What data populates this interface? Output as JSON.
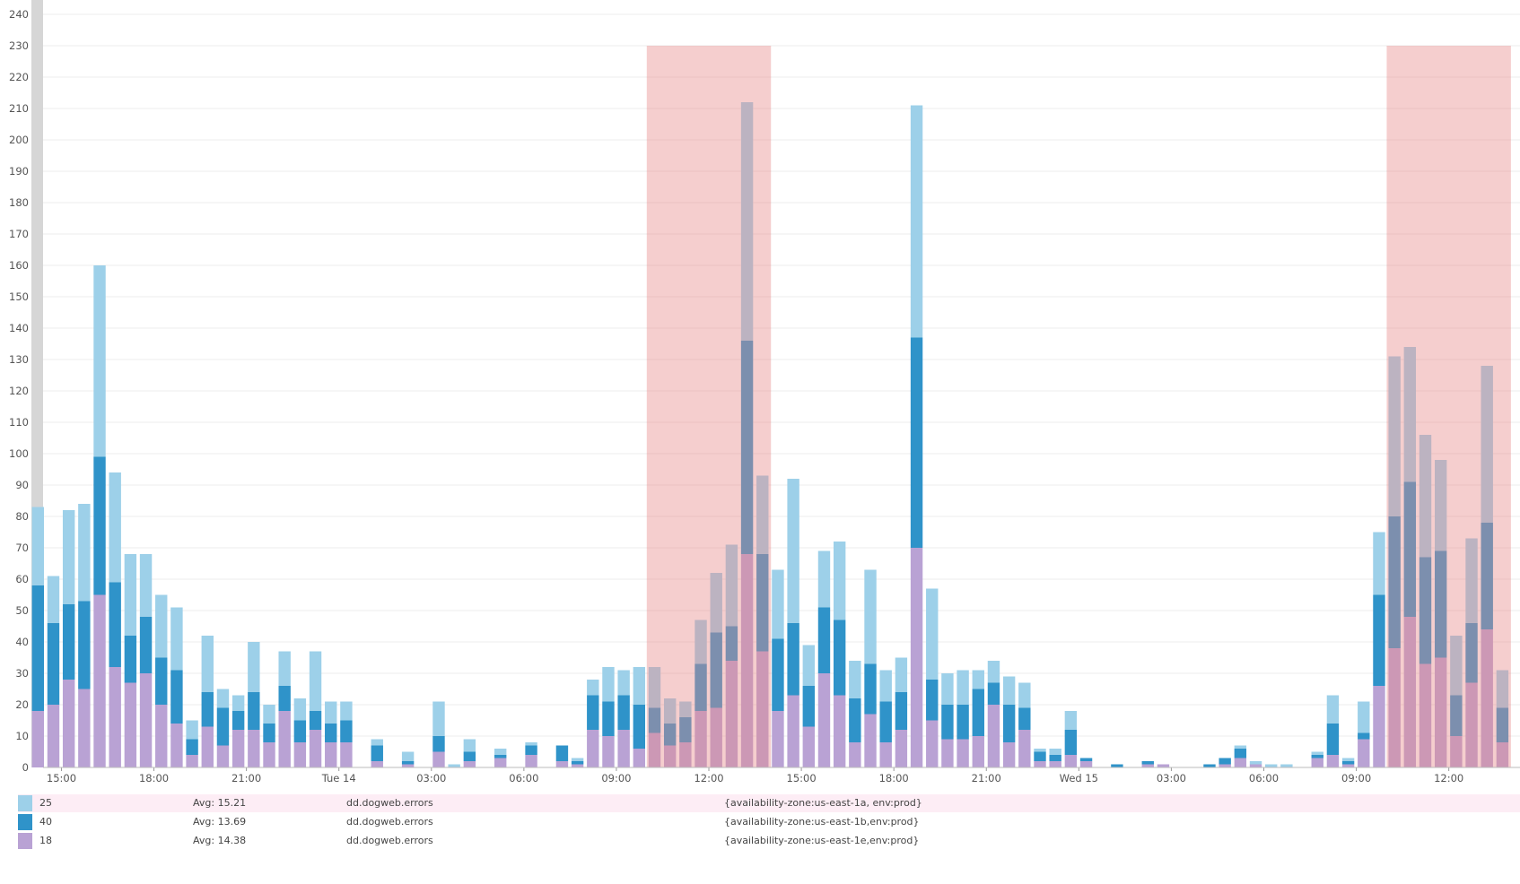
{
  "chart_data": {
    "type": "bar",
    "stacked": true,
    "interval": "30m",
    "first_bucket": "Mon 14:00",
    "ylim": [
      0,
      240
    ],
    "yticks": [
      0,
      10,
      20,
      30,
      40,
      50,
      60,
      70,
      80,
      90,
      100,
      110,
      120,
      130,
      140,
      150,
      160,
      170,
      180,
      190,
      200,
      210,
      220,
      230,
      240
    ],
    "grid": true,
    "xticks": [
      {
        "label": "15:00",
        "bucket": 2
      },
      {
        "label": "18:00",
        "bucket": 8
      },
      {
        "label": "21:00",
        "bucket": 14
      },
      {
        "label": "Tue 14",
        "bucket": 20
      },
      {
        "label": "03:00",
        "bucket": 26
      },
      {
        "label": "06:00",
        "bucket": 32
      },
      {
        "label": "09:00",
        "bucket": 38
      },
      {
        "label": "12:00",
        "bucket": 44
      },
      {
        "label": "15:00",
        "bucket": 50
      },
      {
        "label": "18:00",
        "bucket": 56
      },
      {
        "label": "21:00",
        "bucket": 62
      },
      {
        "label": "Wed 15",
        "bucket": 68
      },
      {
        "label": "03:00",
        "bucket": 74
      },
      {
        "label": "06:00",
        "bucket": 80
      },
      {
        "label": "09:00",
        "bucket": 86
      },
      {
        "label": "12:00",
        "bucket": 92
      }
    ],
    "markers": [
      {
        "from": "Tue 10:00",
        "to": "Tue 14:00",
        "from_bucket": 40,
        "to_bucket": 48,
        "ymax": 230,
        "color": "#e88a8a"
      },
      {
        "from": "Wed 10:00",
        "to": "Wed 14:00",
        "from_bucket": 88,
        "to_bucket": 96,
        "ymax": 230,
        "color": "#e88a8a"
      }
    ],
    "series": [
      {
        "name": "{availability-zone:us-east-1e,env:prod}",
        "color": "#b9a2d4",
        "values": [
          18,
          20,
          28,
          25,
          55,
          32,
          27,
          30,
          20,
          14,
          4,
          13,
          7,
          12,
          12,
          8,
          18,
          8,
          12,
          8,
          8,
          0,
          2,
          0,
          1,
          0,
          5,
          0,
          2,
          0,
          3,
          0,
          4,
          0,
          2,
          1,
          12,
          10,
          12,
          6,
          11,
          7,
          8,
          18,
          19,
          34,
          68,
          37,
          18,
          23,
          13,
          30,
          23,
          8,
          17,
          8,
          12,
          70,
          15,
          9,
          9,
          10,
          20,
          8,
          12,
          2,
          2,
          4,
          2,
          0,
          0,
          0,
          1,
          1,
          0,
          0,
          0,
          1,
          3,
          1,
          0,
          0,
          0,
          3,
          4,
          1,
          9,
          26,
          38,
          48,
          33,
          35,
          10,
          27,
          44,
          8
        ]
      },
      {
        "name": "{availability-zone:us-east-1b,env:prod}",
        "color": "#2f93c9",
        "values": [
          40,
          26,
          24,
          28,
          44,
          27,
          15,
          18,
          15,
          17,
          5,
          11,
          12,
          6,
          12,
          6,
          8,
          7,
          6,
          6,
          7,
          0,
          5,
          0,
          1,
          0,
          5,
          0,
          3,
          0,
          1,
          0,
          3,
          0,
          5,
          1,
          11,
          11,
          11,
          14,
          8,
          7,
          8,
          15,
          24,
          11,
          68,
          31,
          23,
          23,
          13,
          21,
          24,
          14,
          16,
          13,
          12,
          67,
          13,
          11,
          11,
          15,
          7,
          12,
          7,
          3,
          2,
          8,
          1,
          0,
          1,
          0,
          1,
          0,
          0,
          0,
          1,
          2,
          3,
          0,
          0,
          0,
          0,
          1,
          10,
          1,
          2,
          29,
          42,
          43,
          34,
          34,
          13,
          19,
          34,
          11
        ]
      },
      {
        "name": "{availability-zone:us-east-1a, env:prod}",
        "color": "#9dd0e9",
        "values": [
          25,
          15,
          30,
          31,
          61,
          35,
          26,
          20,
          20,
          20,
          6,
          18,
          6,
          5,
          16,
          6,
          11,
          7,
          19,
          7,
          6,
          0,
          2,
          0,
          3,
          0,
          11,
          1,
          4,
          0,
          2,
          0,
          1,
          0,
          0,
          1,
          5,
          11,
          8,
          12,
          13,
          8,
          5,
          14,
          19,
          26,
          76,
          25,
          22,
          46,
          13,
          18,
          25,
          12,
          30,
          10,
          11,
          74,
          29,
          10,
          11,
          6,
          7,
          9,
          8,
          1,
          2,
          6,
          0,
          0,
          0,
          0,
          0,
          0,
          0,
          0,
          0,
          0,
          1,
          1,
          1,
          1,
          0,
          1,
          9,
          1,
          10,
          20,
          51,
          43,
          39,
          29,
          19,
          27,
          50,
          12
        ]
      }
    ]
  },
  "legend": [
    {
      "value": "25",
      "avg": "Avg: 15.21",
      "metric": "dd.dogweb.errors",
      "tags": "{availability-zone:us-east-1a, env:prod}",
      "color": "#9dd0e9",
      "highlighted": true
    },
    {
      "value": "40",
      "avg": "Avg: 13.69",
      "metric": "dd.dogweb.errors",
      "tags": "{availability-zone:us-east-1b,env:prod}",
      "color": "#2f93c9"
    },
    {
      "value": "18",
      "avg": "Avg: 14.38",
      "metric": "dd.dogweb.errors",
      "tags": "{availability-zone:us-east-1e,env:prod}",
      "color": "#b9a2d4"
    }
  ]
}
